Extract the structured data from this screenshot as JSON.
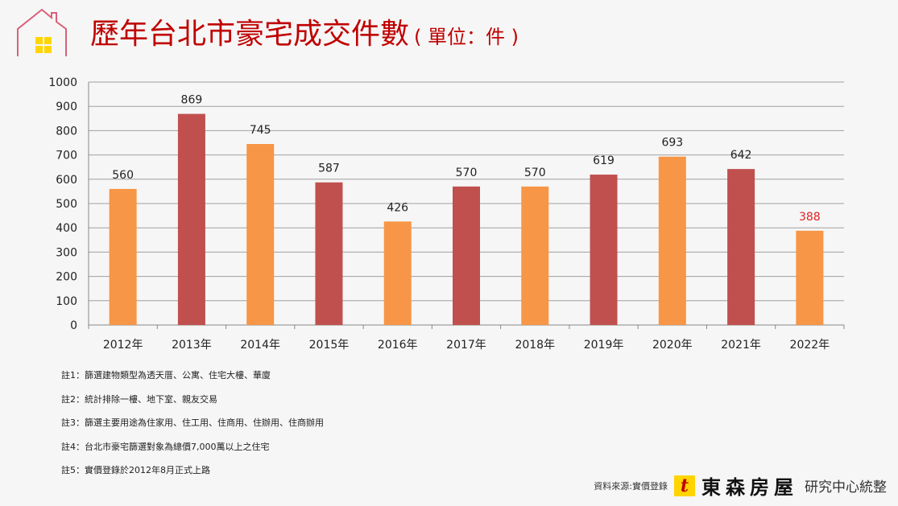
{
  "header": {
    "title": "歷年台北市豪宅成交件數",
    "unit": "( 單位：件 )"
  },
  "chart_data": {
    "type": "bar",
    "title": "歷年台北市豪宅成交件數",
    "categories": [
      "2012年",
      "2013年",
      "2014年",
      "2015年",
      "2016年",
      "2017年",
      "2018年",
      "2019年",
      "2020年",
      "2021年",
      "2022年"
    ],
    "values": [
      560,
      869,
      745,
      587,
      426,
      570,
      570,
      619,
      693,
      642,
      388
    ],
    "bar_colors": [
      "#F79646",
      "#C0504D",
      "#F79646",
      "#C0504D",
      "#F79646",
      "#C0504D",
      "#F79646",
      "#C0504D",
      "#F79646",
      "#C0504D",
      "#F79646"
    ],
    "label_colors": [
      "#222222",
      "#222222",
      "#222222",
      "#222222",
      "#222222",
      "#222222",
      "#222222",
      "#222222",
      "#222222",
      "#222222",
      "#E02020"
    ],
    "yticks": [
      0,
      100,
      200,
      300,
      400,
      500,
      600,
      700,
      800,
      900,
      1000
    ],
    "ylim": [
      0,
      1000
    ],
    "xlabel": "",
    "ylabel": "",
    "grid": true,
    "legend": "none"
  },
  "notes": [
    "註1：篩選建物類型為透天厝、公寓、住宅大樓、華廈",
    "註2：統計排除一樓、地下室、親友交易",
    "註3：篩選主要用途為住家用、住工用、住商用、住辦用、住商辦用",
    "註4：台北市豪宅篩選對象為總價7,000萬以上之住宅",
    "註5：實價登錄於2012年8月正式上路"
  ],
  "footer": {
    "source": "資料來源:實價登錄",
    "brand": "東森房屋",
    "dept": "研究中心統整",
    "logo_text": "t"
  }
}
